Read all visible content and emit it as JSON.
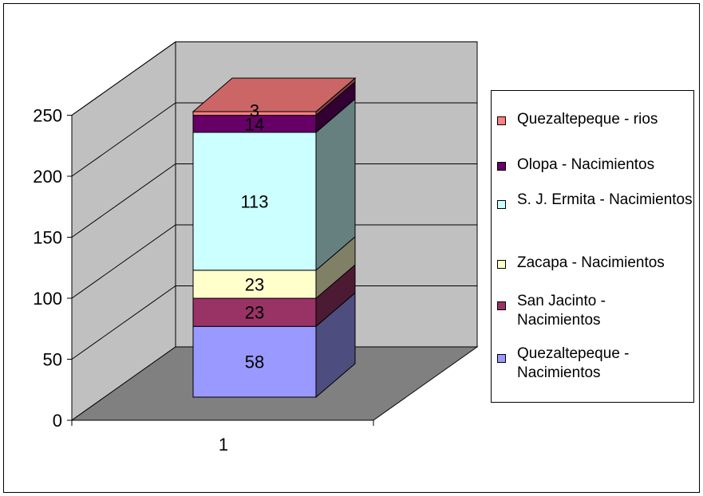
{
  "chart_data": {
    "type": "bar",
    "categories": [
      "1"
    ],
    "series": [
      {
        "name": "Quezaltepeque - Nacimientos",
        "values": [
          58
        ],
        "color": "#9999ff"
      },
      {
        "name": "San Jacinto - Nacimientos",
        "values": [
          23
        ],
        "color": "#993366"
      },
      {
        "name": "Zacapa - Nacimientos",
        "values": [
          23
        ],
        "color": "#ffffcc"
      },
      {
        "name": "S. J. Ermita - Nacimientos",
        "values": [
          113
        ],
        "color": "#ccffff"
      },
      {
        "name": "Olopa - Nacimientos",
        "values": [
          14
        ],
        "color": "#660066"
      },
      {
        "name": "Quezaltepeque - rios",
        "values": [
          3
        ],
        "color": "#ff8080"
      }
    ],
    "stacked": true,
    "three_d": true,
    "ylim": [
      0,
      250
    ],
    "yticks": [
      "0",
      "50",
      "100",
      "150",
      "200",
      "250"
    ],
    "grid": true,
    "legend_position": "right",
    "wall_color": "#c0c0c0",
    "floor_color": "#808080",
    "data_labels": true
  }
}
